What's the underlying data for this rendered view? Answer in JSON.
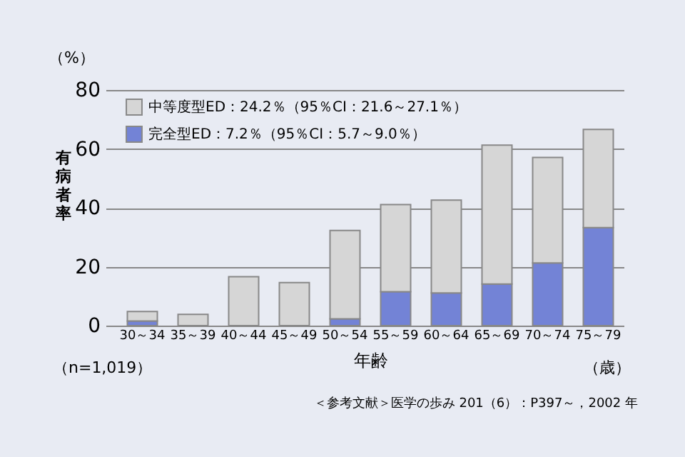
{
  "chart_data": {
    "type": "bar",
    "stacked": true,
    "xlabel": "年齢",
    "ylabel": "有病者率",
    "categories": [
      "30～34",
      "35～39",
      "40～44",
      "45～49",
      "50～54",
      "55～59",
      "60～64",
      "65～69",
      "70～74",
      "75～79"
    ],
    "series": [
      {
        "name": "完全型ED：7.2％（95％CI：5.7～9.0％）",
        "color": "#7383d6",
        "values": [
          1.6,
          0,
          0,
          0,
          2.3,
          11.5,
          11.1,
          14.1,
          21.3,
          33.3
        ]
      },
      {
        "name": "中等度型ED：24.2％（95％CI：21.6～27.1％）",
        "color": "#d6d6d6",
        "values": [
          3.2,
          3.8,
          16.6,
          14.6,
          30.0,
          29.6,
          31.5,
          47.2,
          35.8,
          33.3
        ]
      }
    ],
    "ylim": [
      0,
      80
    ],
    "yticks": [
      0,
      20,
      40,
      60,
      80
    ],
    "grid": "y",
    "legend": "top left",
    "annotations": [
      "（%）",
      "（n=1,019）",
      "（歳）",
      "＜参考文献＞医学の歩み 201（6）：P397～，2002 年"
    ]
  }
}
